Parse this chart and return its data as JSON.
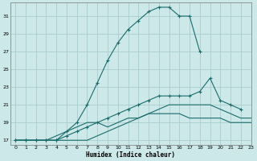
{
  "xlabel": "Humidex (Indice chaleur)",
  "bg_color": "#cce8e8",
  "grid_color": "#aacccc",
  "line_color": "#1a6b6b",
  "xlim": [
    -0.5,
    23
  ],
  "ylim": [
    16.5,
    32.5
  ],
  "yticks": [
    17,
    19,
    21,
    23,
    25,
    27,
    29,
    31
  ],
  "xticks": [
    0,
    1,
    2,
    3,
    4,
    5,
    6,
    7,
    8,
    9,
    10,
    11,
    12,
    13,
    14,
    15,
    16,
    17,
    18,
    19,
    20,
    21,
    22,
    23
  ],
  "series": [
    {
      "x": [
        0,
        1,
        2,
        3,
        4,
        5,
        6,
        7,
        8,
        9,
        10,
        11,
        12,
        13,
        14,
        15,
        16,
        17,
        18
      ],
      "y": [
        17,
        17,
        17,
        17,
        17,
        18,
        19,
        21,
        23.5,
        26,
        28,
        29.5,
        30.5,
        31.5,
        32,
        32,
        31,
        31,
        27
      ],
      "marker": true
    },
    {
      "x": [
        0,
        1,
        2,
        3,
        4,
        5,
        6,
        7,
        8,
        9,
        10,
        11,
        12,
        13,
        14,
        15,
        16,
        17,
        18,
        19,
        20,
        21,
        22
      ],
      "y": [
        17,
        17,
        17,
        17,
        17,
        17.5,
        18,
        18.5,
        19,
        19.5,
        20,
        20.5,
        21,
        21.5,
        22,
        22,
        22,
        22,
        22.5,
        24,
        21.5,
        21,
        20.5
      ],
      "marker": true
    },
    {
      "x": [
        0,
        1,
        2,
        3,
        4,
        5,
        6,
        7,
        8,
        9,
        10,
        11,
        12,
        13,
        14,
        15,
        16,
        17,
        18,
        19,
        20,
        21,
        22,
        23
      ],
      "y": [
        17,
        17,
        17,
        17,
        17,
        17,
        17,
        17,
        17.5,
        18,
        18.5,
        19,
        19.5,
        20,
        20.5,
        21,
        21,
        21,
        21,
        21,
        20.5,
        20,
        19.5,
        19.5
      ],
      "marker": false
    },
    {
      "x": [
        0,
        1,
        2,
        3,
        4,
        5,
        6,
        7,
        8,
        9,
        10,
        11,
        12,
        13,
        14,
        15,
        16,
        17,
        18,
        19,
        20,
        21,
        22,
        23
      ],
      "y": [
        17,
        17,
        17,
        17,
        17.5,
        18,
        18.5,
        19,
        19,
        18.5,
        19,
        19.5,
        19.5,
        20,
        20,
        20,
        20,
        19.5,
        19.5,
        19.5,
        19.5,
        19,
        19,
        19
      ],
      "marker": false
    }
  ]
}
